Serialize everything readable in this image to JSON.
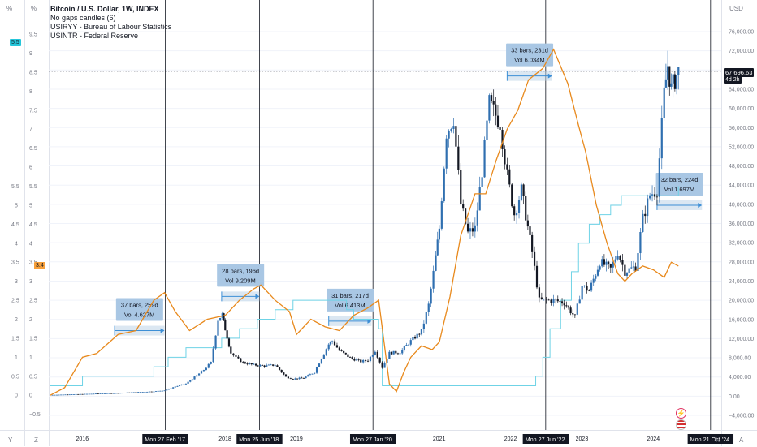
{
  "legend": {
    "title": "Bitcoin / U.S. Dollar, 1W, INDEX",
    "line2": "No gaps candles (6)",
    "line3": "USIRYY - Bureau of Labour Statistics",
    "line4": "USINTR - Federal Reserve"
  },
  "corners": {
    "left_pct1": "%",
    "left_pct2": "%",
    "right_usd": "USD",
    "bottom_y": "Y",
    "bottom_z": "Z",
    "bottom_pct": "%",
    "bottom_a": "A"
  },
  "colors": {
    "up_candle": "#2f6fb0",
    "down_candle": "#131722",
    "cpi": "#e8891c",
    "rate": "#6fd3e6",
    "measure_fill": "#b8d0e6",
    "measure_border": "#3d8fd6",
    "badge_cpi": "#f7a03b",
    "badge_rate": "#26c6da"
  },
  "badges": {
    "rate": "5.5",
    "cpi": "3.4",
    "price": "67,696.63",
    "countdown": "4d 2h"
  },
  "chart_data": [
    {
      "type": "candlestick",
      "title": "Bitcoin / U.S. Dollar, 1W, INDEX",
      "ylabel": "USD",
      "ylim": [
        -4000,
        76000
      ],
      "yticks": [
        "76,000.00",
        "72,000.00",
        "68,000.00",
        "64,000.00",
        "60,000.00",
        "56,000.00",
        "52,000.00",
        "48,000.00",
        "44,000.00",
        "40,000.00",
        "36,000.00",
        "32,000.00",
        "28,000.00",
        "24,000.00",
        "20,000.00",
        "16,000.00",
        "12,000.00",
        "8,000.00",
        "4,000.00",
        "0.00",
        "−4,000.00"
      ],
      "ytick_values": [
        76000,
        72000,
        68000,
        64000,
        60000,
        56000,
        52000,
        48000,
        44000,
        40000,
        36000,
        32000,
        28000,
        24000,
        20000,
        16000,
        12000,
        8000,
        4000,
        0,
        -4000
      ],
      "last_price": 67696.63,
      "x": [
        2015.55,
        2016.0,
        2016.5,
        2017.0,
        2017.15,
        2017.3,
        2017.45,
        2017.6,
        2017.7,
        2017.8,
        2017.9,
        2017.96,
        2018.0,
        2018.08,
        2018.15,
        2018.25,
        2018.4,
        2018.55,
        2018.7,
        2018.85,
        2018.95,
        2019.1,
        2019.25,
        2019.35,
        2019.45,
        2019.5,
        2019.6,
        2019.75,
        2019.9,
        2020.0,
        2020.1,
        2020.2,
        2020.3,
        2020.45,
        2020.6,
        2020.75,
        2020.85,
        2020.95,
        2021.0,
        2021.1,
        2021.2,
        2021.3,
        2021.4,
        2021.5,
        2021.6,
        2021.7,
        2021.85,
        2021.95,
        2022.05,
        2022.15,
        2022.3,
        2022.4,
        2022.5,
        2022.6,
        2022.75,
        2022.9,
        2023.0,
        2023.1,
        2023.25,
        2023.4,
        2023.5,
        2023.6,
        2023.75,
        2023.85,
        2023.95,
        2024.05,
        2024.15,
        2024.2,
        2024.25,
        2024.3,
        2024.35
      ],
      "close": [
        250,
        430,
        650,
        1000,
        1200,
        2000,
        2600,
        4300,
        5500,
        7000,
        16000,
        17000,
        14000,
        9000,
        8000,
        7000,
        6500,
        6300,
        6500,
        4000,
        3600,
        3800,
        5000,
        8000,
        10800,
        11500,
        9500,
        8000,
        7200,
        7500,
        9500,
        6000,
        9000,
        9200,
        11500,
        13500,
        19000,
        29000,
        35000,
        55000,
        58000,
        40000,
        34000,
        35000,
        47000,
        61000,
        57000,
        46000,
        38000,
        43000,
        30000,
        20000,
        20000,
        20000,
        19500,
        16500,
        23000,
        22000,
        28000,
        26500,
        30000,
        26000,
        27000,
        37000,
        42000,
        43000,
        63000,
        69000,
        64000,
        66000,
        67697
      ]
    },
    {
      "type": "line",
      "name": "USIRYY",
      "ylim": [
        -0.7,
        10.1
      ],
      "yticks": [
        "9.5",
        "9",
        "8.5",
        "8",
        "7.5",
        "7",
        "6.5",
        "6",
        "5.5",
        "5",
        "4.5",
        "4",
        "3.5",
        "3",
        "2.5",
        "2",
        "1.5",
        "1",
        "0.5",
        "0",
        "−0.5"
      ],
      "ytick_values": [
        9.5,
        9,
        8.5,
        8,
        7.5,
        7,
        6.5,
        6,
        5.5,
        5,
        4.5,
        4,
        3.5,
        3,
        2.5,
        2,
        1.5,
        1,
        0.5,
        0,
        -0.5
      ],
      "last_value": 3.4,
      "x": [
        2015.55,
        2015.75,
        2016.0,
        2016.2,
        2016.5,
        2016.75,
        2017.0,
        2017.15,
        2017.3,
        2017.5,
        2017.75,
        2018.0,
        2018.2,
        2018.4,
        2018.5,
        2018.7,
        2018.9,
        2019.0,
        2019.2,
        2019.4,
        2019.6,
        2019.8,
        2020.0,
        2020.15,
        2020.3,
        2020.4,
        2020.5,
        2020.6,
        2020.75,
        2020.9,
        2021.0,
        2021.15,
        2021.3,
        2021.5,
        2021.65,
        2021.8,
        2021.95,
        2022.1,
        2022.25,
        2022.45,
        2022.6,
        2022.8,
        2022.95,
        2023.05,
        2023.2,
        2023.35,
        2023.5,
        2023.6,
        2023.7,
        2023.85,
        2024.0,
        2024.15,
        2024.25,
        2024.35
      ],
      "y": [
        0.0,
        0.2,
        1.0,
        1.1,
        1.6,
        1.7,
        2.5,
        2.7,
        2.2,
        1.7,
        2.0,
        2.1,
        2.5,
        2.8,
        2.9,
        2.5,
        2.2,
        1.6,
        2.0,
        1.8,
        1.7,
        2.1,
        2.3,
        2.5,
        0.3,
        0.1,
        0.6,
        1.0,
        1.3,
        1.2,
        1.4,
        2.6,
        4.2,
        5.3,
        5.3,
        6.2,
        7.0,
        7.5,
        8.3,
        8.6,
        9.1,
        8.2,
        7.1,
        6.4,
        5.0,
        4.0,
        3.2,
        3.0,
        3.2,
        3.4,
        3.3,
        3.1,
        3.5,
        3.4
      ]
    },
    {
      "type": "line",
      "name": "USINTR",
      "x": [
        2015.55,
        2015.95,
        2016.0,
        2016.95,
        2017.0,
        2017.2,
        2017.45,
        2017.95,
        2018.2,
        2018.45,
        2018.7,
        2018.95,
        2019.55,
        2019.7,
        2019.8,
        2020.15,
        2020.2,
        2022.2,
        2022.35,
        2022.45,
        2022.55,
        2022.7,
        2022.85,
        2022.95,
        2023.1,
        2023.25,
        2023.4,
        2023.55,
        2024.35
      ],
      "y": [
        0.25,
        0.25,
        0.5,
        0.5,
        0.75,
        1.0,
        1.25,
        1.5,
        1.75,
        2.0,
        2.25,
        2.5,
        2.5,
        2.25,
        2.0,
        1.75,
        0.25,
        0.25,
        0.5,
        1.0,
        1.75,
        2.5,
        3.25,
        4.0,
        4.5,
        4.75,
        5.0,
        5.25,
        5.5
      ]
    }
  ],
  "measurements": [
    {
      "label1": "37 bars, 259d",
      "label2": "Vol 4.627",
      "unit": "M",
      "x0": 2016.45,
      "x1": 2017.15,
      "value": 1.7
    },
    {
      "label1": "28 bars, 196d",
      "label2": "Vol 9.209",
      "unit": "M",
      "x0": 2017.95,
      "x1": 2018.48,
      "value": 2.6
    },
    {
      "label1": "31 bars, 217d",
      "label2": "Vol 6.413",
      "unit": "M",
      "x0": 2019.45,
      "x1": 2020.05,
      "value": 1.95
    },
    {
      "label1": "33 bars, 231d",
      "label2": "Vol 6.034",
      "unit": "M",
      "x0": 2021.95,
      "x1": 2022.58,
      "value": 8.4
    },
    {
      "label1": "32 bars, 224d",
      "label2": "Vol 1.697",
      "unit": "M",
      "x0": 2024.05,
      "x1": 2024.68,
      "value": 5.0
    }
  ],
  "vlines": [
    2017.16,
    2018.48,
    2020.07,
    2022.49,
    2024.8
  ],
  "xaxis": {
    "years": [
      {
        "label": "2016",
        "x": 2016.0
      },
      {
        "label": "2018",
        "x": 2018.0
      },
      {
        "label": "2019",
        "x": 2019.0
      },
      {
        "label": "2021",
        "x": 2021.0
      },
      {
        "label": "2022",
        "x": 2022.0
      },
      {
        "label": "2023",
        "x": 2023.0
      },
      {
        "label": "2024",
        "x": 2024.0
      }
    ],
    "dates": [
      {
        "label": "Mon 27 Feb '17",
        "x": 2017.16
      },
      {
        "label": "Mon 25 Jun '18",
        "x": 2018.48
      },
      {
        "label": "Mon 27 Jan '20",
        "x": 2020.07
      },
      {
        "label": "Mon 27 Jun '22",
        "x": 2022.49
      },
      {
        "label": "Mon 21 Oct '24",
        "x": 2024.8
      }
    ]
  }
}
